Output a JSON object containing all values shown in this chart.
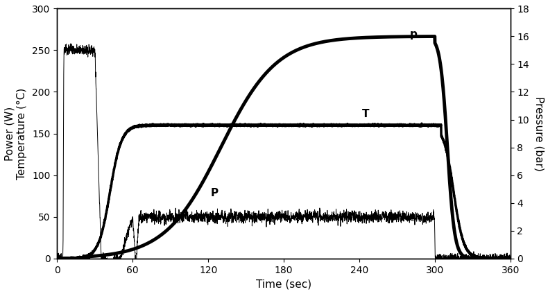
{
  "xlim": [
    0,
    360
  ],
  "ylim_left": [
    0,
    300
  ],
  "ylim_right": [
    0,
    18
  ],
  "xlabel": "Time (sec)",
  "ylabel_left": "Power (W)\nTemperature (°C)",
  "ylabel_right": "Pressure (bar)",
  "xticks": [
    0,
    60,
    120,
    180,
    240,
    300,
    360
  ],
  "yticks_left": [
    0,
    50,
    100,
    150,
    200,
    250,
    300
  ],
  "yticks_right": [
    0,
    2,
    4,
    6,
    8,
    10,
    12,
    14,
    16,
    18
  ],
  "bg_color": "#ffffff",
  "line_color": "#000000",
  "label_T": "T",
  "label_p": "p",
  "label_P": "P"
}
